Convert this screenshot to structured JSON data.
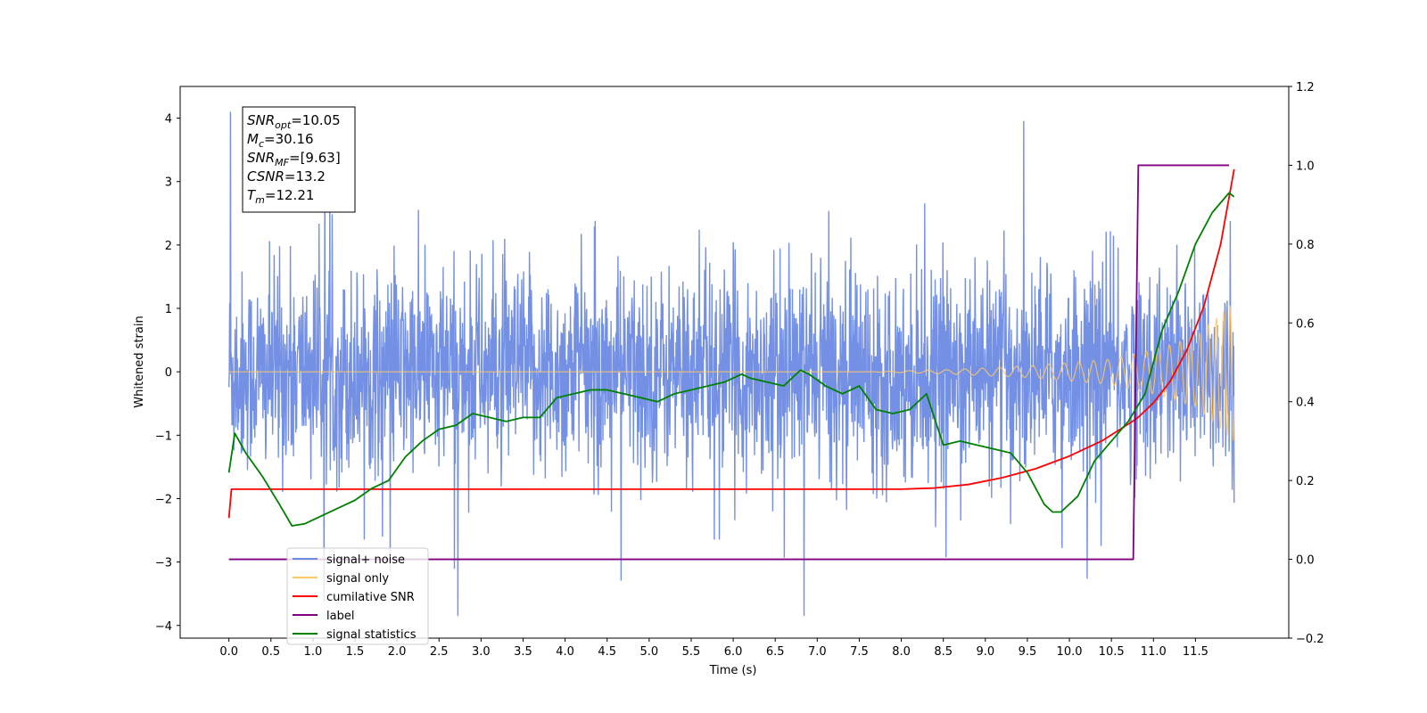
{
  "chart_data": {
    "type": "line",
    "xlabel": "Time (s)",
    "ylabel": "Whitened strain",
    "ylabel_right": "",
    "xlim": [
      -0.58,
      12.61
    ],
    "ylim_left": [
      -4.2,
      4.5
    ],
    "ylim_right": [
      -0.2,
      1.2
    ],
    "x_ticks": [
      0.0,
      0.5,
      1.0,
      1.5,
      2.0,
      2.5,
      3.0,
      3.5,
      4.0,
      4.5,
      5.0,
      5.5,
      6.0,
      6.5,
      7.0,
      7.5,
      8.0,
      8.5,
      9.0,
      9.5,
      10.0,
      10.5,
      11.0,
      11.5
    ],
    "x_tick_labels": [
      "0.0",
      "0.5",
      "1.0",
      "1.5",
      "2.0",
      "2.5",
      "3.0",
      "3.5",
      "4.0",
      "4.5",
      "5.0",
      "5.5",
      "6.0",
      "6.5",
      "7.0",
      "7.5",
      "8.0",
      "8.5",
      "9.0",
      "9.5",
      "10.0",
      "10.5",
      "11.0",
      "11.5"
    ],
    "y_left_ticks": [
      4,
      3,
      2,
      1,
      0,
      -1,
      -2,
      -3,
      -4
    ],
    "y_left_tick_labels": [
      "4",
      "3",
      "2",
      "1",
      "0",
      "−1",
      "−2",
      "−3",
      "−4"
    ],
    "y_right_ticks": [
      1.2,
      1.0,
      0.8,
      0.6,
      0.4,
      0.2,
      0.0,
      -0.2
    ],
    "y_right_tick_labels": [
      "1.2",
      "1.0",
      "0.8",
      "0.6",
      "0.4",
      "0.2",
      "0.0",
      "−0.2"
    ],
    "legend_location": "lower-left",
    "legend": [
      {
        "label": "signal+ noise",
        "color": "#6c8ae4"
      },
      {
        "label": "signal only",
        "color": "#ffc866"
      },
      {
        "label": "cumilative SNR",
        "color": "#ff0000"
      },
      {
        "label": "label",
        "color": "#800080"
      },
      {
        "label": "signal statistics",
        "color": "#008000"
      }
    ],
    "annotation": [
      {
        "main": "SNR",
        "sub": "opt",
        "value": "=10.05"
      },
      {
        "main": "M",
        "sub": "c",
        "value": "=30.16"
      },
      {
        "main": "SNR",
        "sub": "MF",
        "value": "=[9.63]"
      },
      {
        "main": "CSNR",
        "sub": "",
        "value": "=13.2"
      },
      {
        "main": "T",
        "sub": "m",
        "value": "=12.21"
      }
    ],
    "series": [
      {
        "name": "signal+ noise",
        "axis": "left",
        "color": "#6c8ae4",
        "style": "noise",
        "x_range": [
          0.0,
          11.96
        ],
        "envelope": {
          "center": 0.0,
          "typical_low": -1.6,
          "typical_high": 1.6,
          "peak_high": 4.1,
          "peak_low": -3.85
        }
      },
      {
        "name": "signal only",
        "axis": "left",
        "color": "#ffc866",
        "style": "chirp",
        "x_range": [
          0.0,
          11.96
        ],
        "amplitude_points": [
          [
            0.0,
            0.0
          ],
          [
            7.6,
            0.0
          ],
          [
            8.5,
            0.03
          ],
          [
            9.5,
            0.09
          ],
          [
            10.5,
            0.2
          ],
          [
            11.0,
            0.35
          ],
          [
            11.5,
            0.55
          ],
          [
            11.96,
            1.1
          ]
        ]
      },
      {
        "name": "cumilative SNR",
        "axis": "right",
        "color": "#ff0000",
        "x": [
          0.0,
          0.03,
          8.0,
          8.4,
          8.8,
          9.2,
          9.6,
          10.0,
          10.4,
          10.8,
          11.0,
          11.2,
          11.4,
          11.6,
          11.8,
          11.96
        ],
        "y": [
          0.105,
          0.178,
          0.178,
          0.181,
          0.19,
          0.207,
          0.23,
          0.262,
          0.302,
          0.357,
          0.397,
          0.452,
          0.532,
          0.642,
          0.8,
          0.99
        ]
      },
      {
        "name": "label",
        "axis": "right",
        "color": "#800080",
        "x": [
          0.0,
          10.76,
          10.82,
          11.9
        ],
        "y": [
          0.0,
          0.0,
          1.0,
          1.0
        ]
      },
      {
        "name": "signal statistics",
        "axis": "right",
        "color": "#008000",
        "x": [
          0.0,
          0.07,
          0.2,
          0.4,
          0.6,
          0.75,
          0.9,
          1.1,
          1.3,
          1.5,
          1.7,
          1.9,
          2.1,
          2.3,
          2.5,
          2.7,
          2.9,
          3.1,
          3.3,
          3.5,
          3.7,
          3.9,
          4.1,
          4.3,
          4.5,
          4.7,
          4.9,
          5.1,
          5.3,
          5.5,
          5.7,
          5.9,
          6.1,
          6.2,
          6.4,
          6.6,
          6.8,
          6.9,
          7.1,
          7.3,
          7.5,
          7.7,
          7.9,
          8.1,
          8.3,
          8.5,
          8.7,
          8.9,
          9.1,
          9.3,
          9.5,
          9.7,
          9.8,
          9.9,
          10.1,
          10.3,
          10.5,
          10.7,
          10.9,
          11.1,
          11.3,
          11.5,
          11.7,
          11.9,
          11.96
        ],
        "y": [
          0.22,
          0.32,
          0.27,
          0.21,
          0.14,
          0.085,
          0.09,
          0.11,
          0.13,
          0.15,
          0.18,
          0.2,
          0.26,
          0.3,
          0.33,
          0.34,
          0.37,
          0.36,
          0.35,
          0.36,
          0.36,
          0.41,
          0.42,
          0.43,
          0.43,
          0.42,
          0.41,
          0.4,
          0.42,
          0.43,
          0.44,
          0.45,
          0.47,
          0.46,
          0.45,
          0.44,
          0.48,
          0.47,
          0.44,
          0.42,
          0.44,
          0.38,
          0.37,
          0.38,
          0.42,
          0.29,
          0.3,
          0.29,
          0.28,
          0.27,
          0.22,
          0.14,
          0.12,
          0.12,
          0.16,
          0.25,
          0.3,
          0.35,
          0.42,
          0.58,
          0.68,
          0.8,
          0.88,
          0.93,
          0.92
        ]
      }
    ]
  }
}
